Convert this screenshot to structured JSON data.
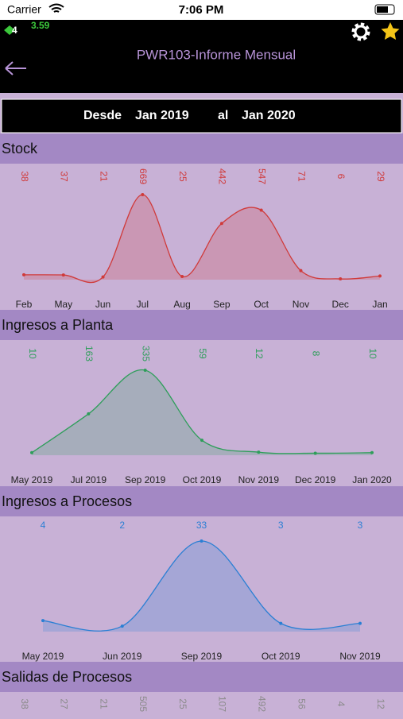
{
  "status_bar": {
    "carrier": "Carrier",
    "time": "7:06 PM"
  },
  "header": {
    "badge": "4",
    "balance": "3.59",
    "title": "PWR103-Informe Mensual"
  },
  "date_range": {
    "from_label": "Desde",
    "from": "Jan 2019",
    "to_label": "al",
    "to": "Jan 2020"
  },
  "chart_data": [
    {
      "type": "area",
      "title": "Stock",
      "color": "#d03a3a",
      "categories": [
        "Feb",
        "May",
        "Jun",
        "Jul",
        "Aug",
        "Sep",
        "Oct",
        "Nov",
        "Dec",
        "Jan"
      ],
      "values": [
        38,
        37,
        21,
        669,
        25,
        442,
        547,
        71,
        6,
        29
      ]
    },
    {
      "type": "area",
      "title": "Ingresos a Planta",
      "color": "#2e9e5a",
      "categories": [
        "May 2019",
        "Jul 2019",
        "Sep 2019",
        "Oct 2019",
        "Nov 2019",
        "Dec 2019",
        "Jan 2020"
      ],
      "values": [
        10,
        163,
        335,
        59,
        12,
        8,
        10
      ]
    },
    {
      "type": "area",
      "title": "Ingresos a Procesos",
      "color": "#2a7fd4",
      "categories": [
        "May 2019",
        "Jun 2019",
        "Sep 2019",
        "Oct 2019",
        "Nov 2019"
      ],
      "values": [
        4,
        2,
        33,
        3,
        3
      ]
    },
    {
      "type": "area",
      "title": "Salidas de Procesos",
      "color": "#8a8a8a",
      "values": [
        38,
        27,
        21,
        505,
        25,
        107,
        492,
        56,
        4,
        12
      ]
    }
  ]
}
